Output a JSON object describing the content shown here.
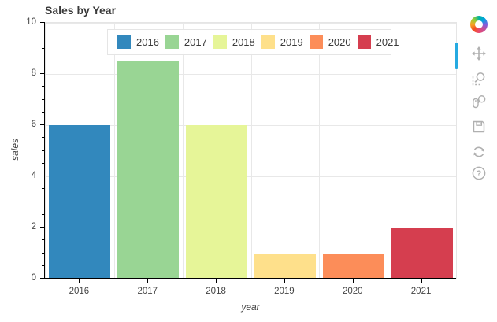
{
  "chart_data": {
    "type": "bar",
    "title": "Sales by Year",
    "xlabel": "year",
    "ylabel": "sales",
    "categories": [
      "2016",
      "2017",
      "2018",
      "2019",
      "2020",
      "2021"
    ],
    "values": [
      6,
      8.5,
      6,
      1,
      1,
      2
    ],
    "bar_colors": [
      "#3288bd",
      "#99d594",
      "#e6f598",
      "#fee08b",
      "#fc8d59",
      "#d53e4f"
    ],
    "ylim": [
      0,
      10
    ],
    "yticks": [
      0,
      2,
      4,
      6,
      8,
      10
    ],
    "minor_tick_step": 0.5,
    "grid": true,
    "legend": {
      "position": "top-center",
      "entries": [
        "2016",
        "2017",
        "2018",
        "2019",
        "2020",
        "2021"
      ]
    }
  },
  "toolbar": {
    "logo": "bokeh-logo",
    "orientation": "vertical-right",
    "active_tool": "pan",
    "help_glyph": "?",
    "tools": [
      {
        "name": "pan",
        "icon": "pan-icon",
        "active": true
      },
      {
        "name": "box-zoom",
        "icon": "box-zoom-icon",
        "active": false
      },
      {
        "name": "wheel-zoom",
        "icon": "wheel-zoom-icon",
        "active": false
      },
      {
        "name": "save",
        "icon": "save-icon",
        "active": false
      },
      {
        "name": "reset",
        "icon": "reset-icon",
        "active": false
      },
      {
        "name": "help",
        "icon": "help-icon",
        "active": false
      }
    ]
  },
  "colors": {
    "grid": "#e8e8e8",
    "axis": "#000000",
    "tick_label": "#444444",
    "title": "#3a3a3a",
    "icon": "#b0b0b0",
    "active_indicator": "#26aae1",
    "legend_border": "#e5e5e5"
  }
}
